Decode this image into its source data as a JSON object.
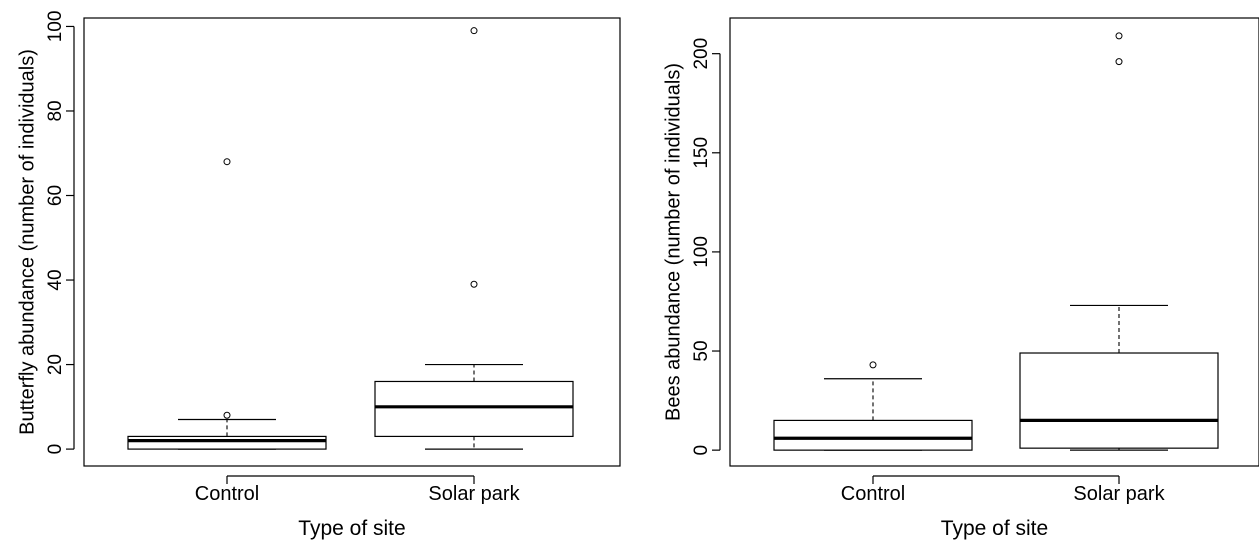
{
  "chart_data": [
    {
      "type": "boxplot",
      "xlabel": "Type of site",
      "ylabel": "Butterfly abundance (number of individuals)",
      "ylim": [
        -4,
        102
      ],
      "yticks": [
        0,
        20,
        40,
        60,
        80,
        100
      ],
      "categories": [
        "Control",
        "Solar park"
      ],
      "boxes": [
        {
          "name": "Control",
          "whisker_low": 0,
          "q1": 0,
          "median": 2,
          "q3": 3,
          "whisker_high": 7,
          "outliers": [
            8,
            68
          ]
        },
        {
          "name": "Solar park",
          "whisker_low": 0,
          "q1": 3,
          "median": 10,
          "q3": 16,
          "whisker_high": 20,
          "outliers": [
            39,
            99
          ]
        }
      ]
    },
    {
      "type": "boxplot",
      "xlabel": "Type of site",
      "ylabel": "Bees abundance (number of individuals)",
      "ylim": [
        -8,
        218
      ],
      "yticks": [
        0,
        50,
        100,
        150,
        200
      ],
      "categories": [
        "Control",
        "Solar park"
      ],
      "boxes": [
        {
          "name": "Control",
          "whisker_low": 0,
          "q1": 0,
          "median": 6,
          "q3": 15,
          "whisker_high": 36,
          "outliers": [
            43
          ]
        },
        {
          "name": "Solar park",
          "whisker_low": 0,
          "q1": 1,
          "median": 15,
          "q3": 49,
          "whisker_high": 73,
          "outliers": [
            196,
            209
          ]
        }
      ]
    }
  ]
}
